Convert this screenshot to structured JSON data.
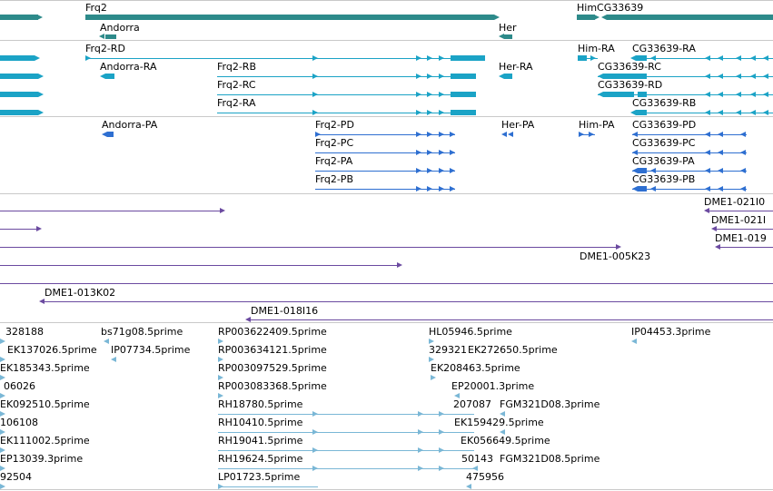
{
  "colors": {
    "gene": "#2d8a8a",
    "mrna": "#1ba3c6",
    "protein": "#2e6fd1",
    "clone": "#6b4aa0",
    "est": "#7ab7d6",
    "separator": "#c9c9c9"
  },
  "genes_track": {
    "labels": [
      {
        "text": "Frq2"
      },
      {
        "text": "Andorra"
      },
      {
        "text": "Her"
      },
      {
        "text": "HimCG33639"
      }
    ]
  },
  "mrna_track": {
    "labels": [
      {
        "text": "Frq2-RD"
      },
      {
        "text": "Andorra-RA"
      },
      {
        "text": "Frq2-RB"
      },
      {
        "text": "Frq2-RC"
      },
      {
        "text": "Frq2-RA"
      },
      {
        "text": "Her-RA"
      },
      {
        "text": "Him-RA"
      },
      {
        "text": "CG33639-RA"
      },
      {
        "text": "CG33639-RC"
      },
      {
        "text": "CG33639-RD"
      },
      {
        "text": "CG33639-RB"
      }
    ]
  },
  "protein_track": {
    "labels": [
      {
        "text": "Andorra-PA"
      },
      {
        "text": "Frq2-PD"
      },
      {
        "text": "Frq2-PC"
      },
      {
        "text": "Frq2-PA"
      },
      {
        "text": "Frq2-PB"
      },
      {
        "text": "Her-PA"
      },
      {
        "text": "Him-PA"
      },
      {
        "text": "CG33639-PD"
      },
      {
        "text": "CG33639-PC"
      },
      {
        "text": "CG33639-PA"
      },
      {
        "text": "CG33639-PB"
      }
    ]
  },
  "clone_track": {
    "labels": [
      {
        "text": "DME1-021I0"
      },
      {
        "text": "DME1-021I"
      },
      {
        "text": "DME1-019"
      },
      {
        "text": "DME1-005K23"
      },
      {
        "text": "DME1-013K02"
      },
      {
        "text": "DME1-018I16"
      }
    ]
  },
  "est_track": {
    "labels": [
      {
        "text": "328188"
      },
      {
        "text": "bs71g08.5prime"
      },
      {
        "text": "RP003622409.5prime"
      },
      {
        "text": "HL05946.5prime"
      },
      {
        "text": "IP04453.3prime"
      },
      {
        "text": "EK137026.5prime"
      },
      {
        "text": "IP07734.5prime"
      },
      {
        "text": "RP003634121.5prime"
      },
      {
        "text": "329321"
      },
      {
        "text": "EK272650.5prime"
      },
      {
        "text": "EK185343.5prime"
      },
      {
        "text": "RP003097529.5prime"
      },
      {
        "text": "EK208463.5prime"
      },
      {
        "text": "06026"
      },
      {
        "text": "RP003083368.5prime"
      },
      {
        "text": "EP20001.3prime"
      },
      {
        "text": "EK092510.5prime"
      },
      {
        "text": "RH18780.5prime"
      },
      {
        "text": "207087"
      },
      {
        "text": "FGM321D08.3prime"
      },
      {
        "text": "106108"
      },
      {
        "text": "RH10410.5prime"
      },
      {
        "text": "EK159429.5prime"
      },
      {
        "text": "EK111002.5prime"
      },
      {
        "text": "RH19041.5prime"
      },
      {
        "text": "EK056649.5prime"
      },
      {
        "text": "EP13039.3prime"
      },
      {
        "text": "RH19624.5prime"
      },
      {
        "text": "50143"
      },
      {
        "text": "FGM321D08.5prime"
      },
      {
        "text": "92504"
      },
      {
        "text": "LP01723.5prime"
      },
      {
        "text": "475956"
      }
    ]
  }
}
